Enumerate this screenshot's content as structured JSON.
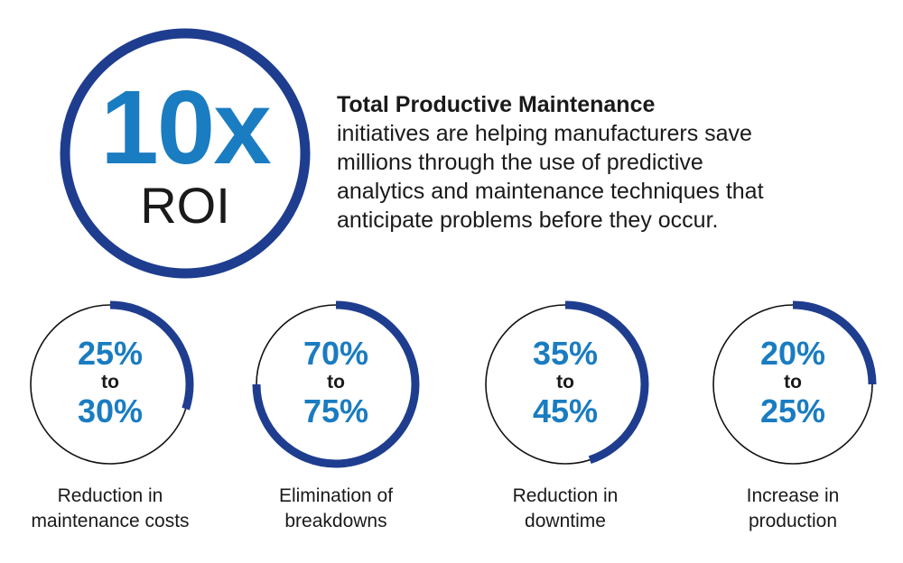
{
  "colors": {
    "ring_blue": "#1f3d8f",
    "number_blue": "#1a7cc1",
    "text_dark": "#1a1a1a",
    "thin_ring": "#111111"
  },
  "hero": {
    "multiplier": "10x",
    "label": "ROI"
  },
  "intro": {
    "title": "Total Productive Maintenance",
    "lines": [
      "initiatives are helping manufacturers save",
      "millions through the use of predictive",
      "analytics and maintenance techniques that",
      "anticipate problems before they occur."
    ]
  },
  "stats": [
    {
      "low": "25%",
      "connector": "to",
      "high": "30%",
      "caption": [
        "Reduction in",
        "maintenance costs"
      ],
      "level_percent": 30
    },
    {
      "low": "70%",
      "connector": "to",
      "high": "75%",
      "caption": [
        "Elimination of",
        "breakdowns"
      ],
      "level_percent": 75
    },
    {
      "low": "35%",
      "connector": "to",
      "high": "45%",
      "caption": [
        "Reduction in",
        "downtime"
      ],
      "level_percent": 45
    },
    {
      "low": "20%",
      "connector": "to",
      "high": "25%",
      "caption": [
        "Increase in",
        "production"
      ],
      "level_percent": 25
    }
  ]
}
